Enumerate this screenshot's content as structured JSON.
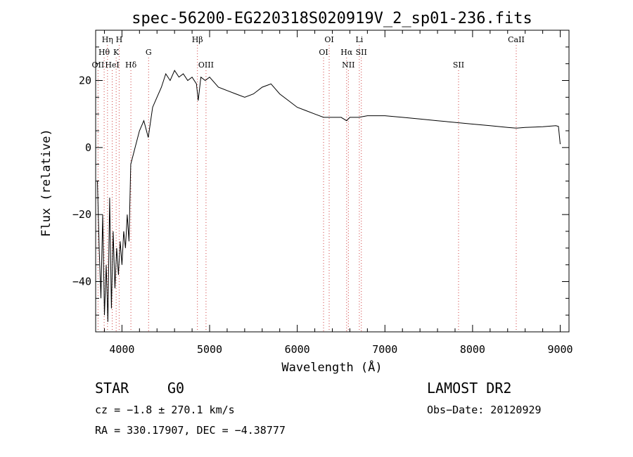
{
  "chart_data": {
    "type": "line",
    "title": "spec-56200-EG220318S020919V_2_sp01-236.fits",
    "xlabel": "Wavelength (Å)",
    "ylabel": "Flux (relative)",
    "xlim": [
      3700,
      9100
    ],
    "ylim": [
      -55,
      35
    ],
    "x_ticks": [
      4000,
      5000,
      6000,
      7000,
      8000,
      9000
    ],
    "y_ticks": [
      -40,
      -20,
      0,
      20
    ],
    "grid": false,
    "series": [
      {
        "x": [
          3720,
          3740,
          3760,
          3780,
          3800,
          3820,
          3840,
          3860,
          3880,
          3900,
          3920,
          3940,
          3960,
          3980,
          4000,
          4020,
          4040,
          4060,
          4080,
          4100,
          4150,
          4200,
          4250,
          4300,
          4350,
          4400,
          4450,
          4500,
          4550,
          4600,
          4650,
          4700,
          4750,
          4800,
          4850,
          4870,
          4900,
          4950,
          5000,
          5100,
          5200,
          5300,
          5400,
          5500,
          5600,
          5700,
          5800,
          5900,
          6000,
          6100,
          6200,
          6300,
          6400,
          6500,
          6563,
          6600,
          6700,
          6800,
          7000,
          7200,
          7400,
          7600,
          7800,
          8000,
          8200,
          8400,
          8500,
          8600,
          8800,
          8950,
          8980,
          9000
        ],
        "y": [
          -10,
          -30,
          -45,
          -20,
          -50,
          -35,
          -52,
          -15,
          -48,
          -25,
          -42,
          -30,
          -38,
          -28,
          -35,
          -25,
          -30,
          -20,
          -28,
          -5,
          0,
          5,
          8,
          3,
          12,
          15,
          18,
          22,
          20,
          23,
          21,
          22,
          20,
          21,
          19,
          14,
          21,
          20,
          21,
          18,
          17,
          16,
          15,
          16,
          18,
          19,
          16,
          14,
          12,
          11,
          10,
          9,
          9,
          9,
          8,
          9,
          9,
          9.5,
          9.5,
          9,
          8.5,
          8,
          7.5,
          7,
          6.5,
          6,
          5.8,
          6,
          6.2,
          6.5,
          6.3,
          1
        ]
      }
    ],
    "lines": [
      {
        "label": "Hη",
        "x": 3835,
        "row": 0
      },
      {
        "label": "H",
        "x": 3968,
        "row": 0
      },
      {
        "label": "Hθ",
        "x": 3797,
        "row": 1
      },
      {
        "label": "K",
        "x": 3934,
        "row": 1
      },
      {
        "label": "G",
        "x": 4304,
        "row": 1
      },
      {
        "label": "OII",
        "x": 3727,
        "row": 2
      },
      {
        "label": "HeI",
        "x": 3889,
        "row": 2
      },
      {
        "label": "Hδ",
        "x": 4102,
        "row": 2
      },
      {
        "label": "Hβ",
        "x": 4861,
        "row": 0
      },
      {
        "label": "OIII",
        "x": 4959,
        "row": 2
      },
      {
        "label": "OI",
        "x": 6364,
        "row": 0
      },
      {
        "label": "OI",
        "x": 6300,
        "row": 1
      },
      {
        "label": "Li",
        "x": 6708,
        "row": 0
      },
      {
        "label": "Hα",
        "x": 6563,
        "row": 1
      },
      {
        "label": "SII",
        "x": 6731,
        "row": 1
      },
      {
        "label": "NII",
        "x": 6583,
        "row": 2
      },
      {
        "label": "SII",
        "x": 7840,
        "row": 2
      },
      {
        "label": "CaII",
        "x": 8498,
        "row": 0
      }
    ]
  },
  "info": {
    "star_type": "STAR",
    "spectral_class": "G0",
    "cz": "cz = −1.8 ± 270.1 km/s",
    "radec": "RA = 330.17907, DEC =  −4.38777",
    "survey": "LAMOST DR2",
    "obs_date": "Obs−Date: 20120929"
  }
}
